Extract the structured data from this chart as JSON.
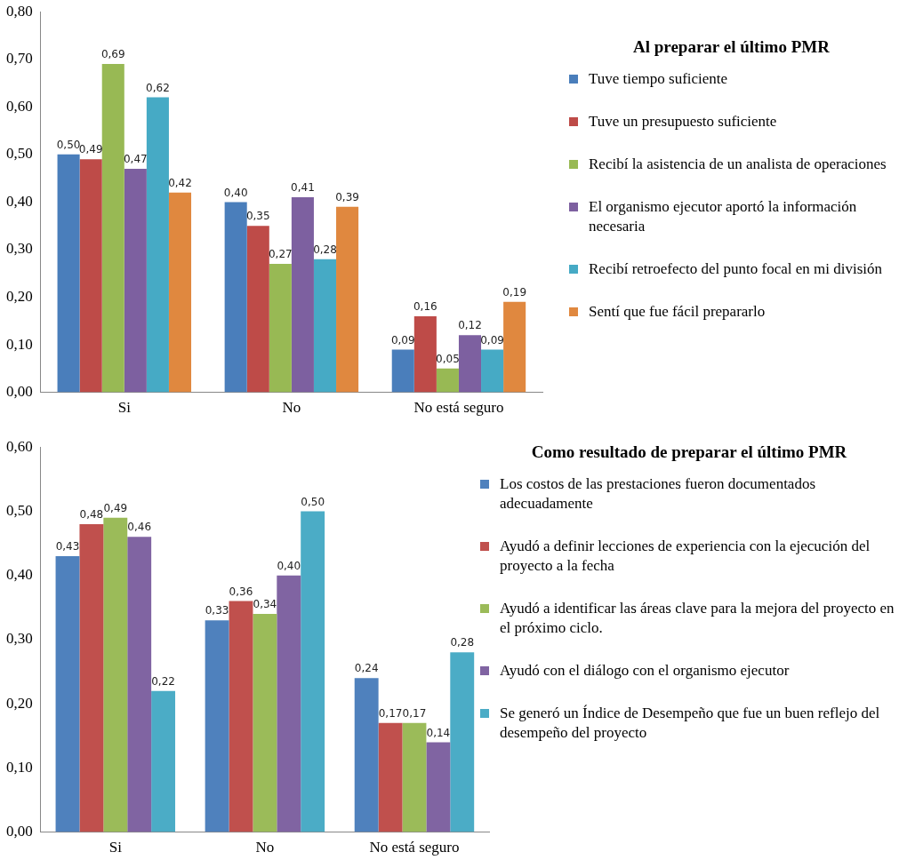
{
  "chart_data": [
    {
      "type": "bar",
      "legend_title": "Al preparar el último PMR",
      "categories": [
        "Si",
        "No",
        "No está seguro"
      ],
      "ylim": [
        0,
        0.8
      ],
      "yticks": [
        {
          "value": 0,
          "label": "0,00"
        },
        {
          "value": 0.1,
          "label": "0,10"
        },
        {
          "value": 0.2,
          "label": "0,20"
        },
        {
          "value": 0.3,
          "label": "0,30"
        },
        {
          "value": 0.4,
          "label": "0,40"
        },
        {
          "value": 0.5,
          "label": "0,50"
        },
        {
          "value": 0.6,
          "label": "0,60"
        },
        {
          "value": 0.7,
          "label": "0,70"
        },
        {
          "value": 0.8,
          "label": "0,80"
        }
      ],
      "grid": false,
      "legend": "right",
      "series": [
        {
          "name": "Tuve tiempo suficiente",
          "color": "#4a7ebb",
          "values": [
            0.5,
            0.4,
            0.09
          ],
          "value_labels": [
            "0,50",
            "0,40",
            "0,09"
          ]
        },
        {
          "name": "Tuve un presupuesto suficiente",
          "color": "#be4b48",
          "values": [
            0.49,
            0.35,
            0.16
          ],
          "value_labels": [
            "0,49",
            "0,35",
            "0,16"
          ]
        },
        {
          "name": "Recibí la asistencia de un analista de operaciones",
          "color": "#98b954",
          "values": [
            0.69,
            0.27,
            0.05
          ],
          "value_labels": [
            "0,69",
            "0,27",
            "0,05"
          ]
        },
        {
          "name": "El organismo ejecutor aportó la información necesaria",
          "color": "#7d60a0",
          "values": [
            0.47,
            0.41,
            0.12
          ],
          "value_labels": [
            "0,47",
            "0,41",
            "0,12"
          ]
        },
        {
          "name": "Recibí retroefecto del punto focal en mi división",
          "color": "#46aac5",
          "values": [
            0.62,
            0.28,
            0.09
          ],
          "value_labels": [
            "0,62",
            "0,28",
            "0,09"
          ]
        },
        {
          "name": "Sentí que fue fácil prepararlo",
          "color": "#e0883f",
          "values": [
            0.42,
            0.39,
            0.19
          ],
          "value_labels": [
            "0,42",
            "0,39",
            "0,19"
          ]
        }
      ]
    },
    {
      "type": "bar",
      "legend_title": "Como resultado de preparar el último PMR",
      "categories": [
        "Si",
        "No",
        "No está seguro"
      ],
      "ylim": [
        0,
        0.6
      ],
      "yticks": [
        {
          "value": 0,
          "label": "0,00"
        },
        {
          "value": 0.1,
          "label": "0,10"
        },
        {
          "value": 0.2,
          "label": "0,20"
        },
        {
          "value": 0.3,
          "label": "0,30"
        },
        {
          "value": 0.4,
          "label": "0,40"
        },
        {
          "value": 0.5,
          "label": "0,50"
        },
        {
          "value": 0.6,
          "label": "0,60"
        }
      ],
      "grid": false,
      "legend": "right",
      "series": [
        {
          "name": "Los costos de las prestaciones fueron documentados adecuadamente",
          "color": "#4f81bd",
          "values": [
            0.43,
            0.33,
            0.24
          ],
          "value_labels": [
            "0,43",
            "0,33",
            "0,24"
          ]
        },
        {
          "name": "Ayudó a definir lecciones de experiencia con la ejecución del proyecto a la fecha",
          "color": "#c0504d",
          "values": [
            0.48,
            0.36,
            0.17
          ],
          "value_labels": [
            "0,48",
            "0,36",
            "0,17"
          ]
        },
        {
          "name": "Ayudó a identificar las áreas clave para la mejora del proyecto en el próximo ciclo.",
          "color": "#9bbb59",
          "values": [
            0.49,
            0.34,
            0.17
          ],
          "value_labels": [
            "0,49",
            "0,34",
            "0,17"
          ]
        },
        {
          "name": "Ayudó con el diálogo con el organismo ejecutor",
          "color": "#8064a2",
          "values": [
            0.46,
            0.4,
            0.14
          ],
          "value_labels": [
            "0,46",
            "0,40",
            "0,14"
          ]
        },
        {
          "name": "Se generó un Índice de Desempeño que fue un buen reflejo del desempeño del proyecto",
          "color": "#4bacc6",
          "values": [
            0.22,
            0.5,
            0.28
          ],
          "value_labels": [
            "0,22",
            "0,50",
            "0,28"
          ]
        }
      ]
    }
  ]
}
